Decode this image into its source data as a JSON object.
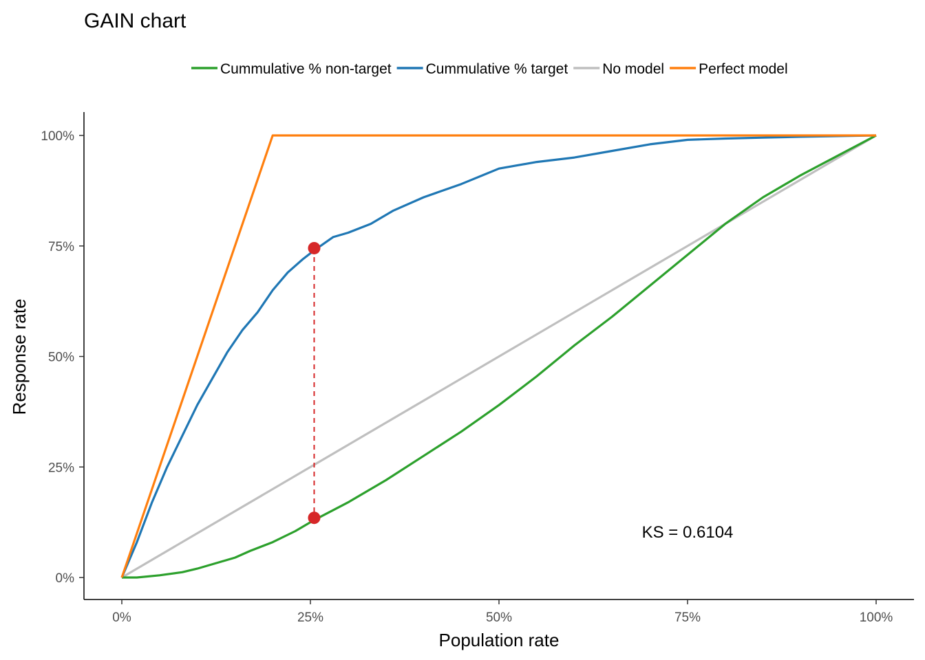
{
  "chart_data": {
    "type": "line",
    "title": "GAIN chart",
    "xlabel": "Population rate",
    "ylabel": "Response rate",
    "xlim": [
      0,
      1
    ],
    "ylim": [
      0,
      1
    ],
    "x_ticks": [
      {
        "value": 0,
        "label": "0%"
      },
      {
        "value": 0.25,
        "label": "25%"
      },
      {
        "value": 0.5,
        "label": "50%"
      },
      {
        "value": 0.75,
        "label": "75%"
      },
      {
        "value": 1,
        "label": "100%"
      }
    ],
    "y_ticks": [
      {
        "value": 0,
        "label": "0%"
      },
      {
        "value": 0.25,
        "label": "25%"
      },
      {
        "value": 0.5,
        "label": "50%"
      },
      {
        "value": 0.75,
        "label": "75%"
      },
      {
        "value": 1,
        "label": "100%"
      }
    ],
    "grid": false,
    "legend_position": "top",
    "series": [
      {
        "name": "Cummulative % non-target",
        "color": "#2ca02c",
        "points": [
          [
            0,
            0
          ],
          [
            0.02,
            0.0
          ],
          [
            0.05,
            0.005
          ],
          [
            0.08,
            0.012
          ],
          [
            0.1,
            0.02
          ],
          [
            0.13,
            0.035
          ],
          [
            0.15,
            0.045
          ],
          [
            0.17,
            0.06
          ],
          [
            0.2,
            0.08
          ],
          [
            0.23,
            0.105
          ],
          [
            0.255,
            0.13
          ],
          [
            0.3,
            0.17
          ],
          [
            0.35,
            0.22
          ],
          [
            0.4,
            0.275
          ],
          [
            0.45,
            0.33
          ],
          [
            0.5,
            0.39
          ],
          [
            0.55,
            0.455
          ],
          [
            0.6,
            0.525
          ],
          [
            0.65,
            0.59
          ],
          [
            0.7,
            0.66
          ],
          [
            0.75,
            0.73
          ],
          [
            0.8,
            0.8
          ],
          [
            0.85,
            0.86
          ],
          [
            0.9,
            0.91
          ],
          [
            0.95,
            0.955
          ],
          [
            1,
            1
          ]
        ]
      },
      {
        "name": "Cummulative % target",
        "color": "#1f77b4",
        "points": [
          [
            0,
            0
          ],
          [
            0.02,
            0.08
          ],
          [
            0.04,
            0.17
          ],
          [
            0.06,
            0.25
          ],
          [
            0.08,
            0.32
          ],
          [
            0.1,
            0.39
          ],
          [
            0.12,
            0.45
          ],
          [
            0.14,
            0.51
          ],
          [
            0.16,
            0.56
          ],
          [
            0.18,
            0.6
          ],
          [
            0.2,
            0.65
          ],
          [
            0.22,
            0.69
          ],
          [
            0.24,
            0.72
          ],
          [
            0.255,
            0.74
          ],
          [
            0.28,
            0.77
          ],
          [
            0.3,
            0.78
          ],
          [
            0.33,
            0.8
          ],
          [
            0.36,
            0.83
          ],
          [
            0.4,
            0.86
          ],
          [
            0.45,
            0.89
          ],
          [
            0.5,
            0.925
          ],
          [
            0.55,
            0.94
          ],
          [
            0.6,
            0.95
          ],
          [
            0.65,
            0.965
          ],
          [
            0.7,
            0.98
          ],
          [
            0.75,
            0.99
          ],
          [
            0.8,
            0.993
          ],
          [
            0.85,
            0.995
          ],
          [
            0.9,
            0.997
          ],
          [
            1,
            1
          ]
        ]
      },
      {
        "name": "No model",
        "color": "#bfbfbf",
        "points": [
          [
            0,
            0
          ],
          [
            1,
            1
          ]
        ]
      },
      {
        "name": "Perfect model",
        "color": "#ff7f0e",
        "points": [
          [
            0,
            0
          ],
          [
            0.2,
            1
          ],
          [
            1,
            1
          ]
        ]
      }
    ],
    "ks_line": {
      "x": 0.255,
      "y_top": 0.745,
      "y_bottom": 0.135,
      "color": "#d62728"
    },
    "annotation": {
      "text": "KS = 0.6104",
      "x": 0.75,
      "y": 0.09
    }
  }
}
